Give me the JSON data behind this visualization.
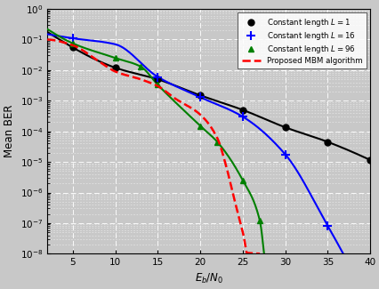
{
  "title": "",
  "xlabel": "$E_b/N_0$",
  "ylabel": "Mean BER",
  "xlim": [
    2,
    40
  ],
  "ylim_log": [
    -8,
    0
  ],
  "xticks": [
    5,
    10,
    15,
    20,
    25,
    30,
    35,
    40
  ],
  "background_color": "#c8c8c8",
  "L1_x": [
    5,
    10,
    15,
    20,
    25,
    30,
    35,
    40
  ],
  "L1_y": [
    0.055,
    0.012,
    0.005,
    0.0015,
    0.0005,
    0.000135,
    4.5e-05,
    1.15e-05
  ],
  "L1_color": "black",
  "L1_label": "Constant length $L = 1$",
  "L1_marker": "o",
  "L16_x_curve": [
    2,
    5,
    10,
    15,
    20,
    25,
    30,
    35,
    37
  ],
  "L16_y_curve": [
    0.15,
    0.11,
    0.07,
    0.006,
    0.0013,
    0.0003,
    1.75e-05,
    8e-08,
    8e-09
  ],
  "L16_x_mark": [
    5,
    15,
    20,
    25,
    30,
    35
  ],
  "L16_y_mark": [
    0.11,
    0.006,
    0.0013,
    0.0003,
    1.75e-05,
    8e-08
  ],
  "L16_color": "blue",
  "L16_label": "Constant length $L = 16$",
  "L96_x": [
    2,
    5,
    10,
    13,
    15,
    20,
    22,
    25,
    27,
    27.5
  ],
  "L96_y": [
    0.22,
    0.075,
    0.025,
    0.013,
    0.0033,
    0.00015,
    4.5e-05,
    2.5e-06,
    1.2e-07,
    1e-08
  ],
  "L96_x_mark": [
    5,
    10,
    13,
    15,
    20,
    22,
    25,
    27
  ],
  "L96_y_mark": [
    0.075,
    0.025,
    0.013,
    0.0033,
    0.00015,
    4.5e-05,
    2.5e-06,
    1.2e-07
  ],
  "L96_color": "green",
  "L96_label": "Constant length $L = 96$",
  "mbm_x": [
    2,
    5,
    8,
    10,
    13,
    15,
    17,
    20,
    22,
    23,
    24,
    25,
    26,
    27
  ],
  "mbm_y": [
    0.1,
    0.065,
    0.02,
    0.009,
    0.005,
    0.003,
    0.0012,
    0.00035,
    6e-05,
    8e-06,
    6e-07,
    5e-08,
    3e-09,
    1e-08
  ],
  "mbm_color": "red",
  "mbm_label": "Proposed MBM algorithm",
  "mbm_linestyle": "--"
}
